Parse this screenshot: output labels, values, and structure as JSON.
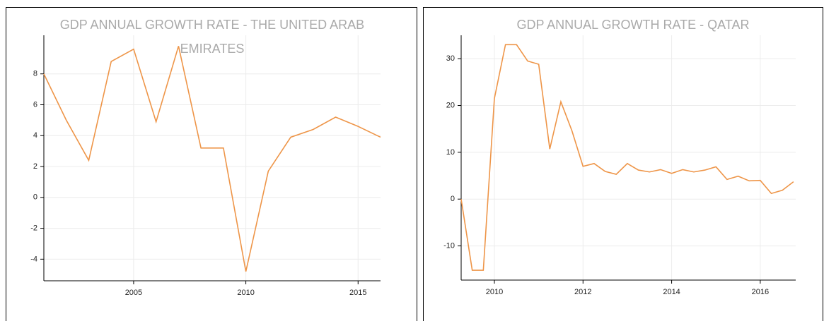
{
  "chart_data": [
    {
      "type": "line",
      "title": "GDP ANNUAL GROWTH RATE - THE UNITED ARAB EMIRATES",
      "x": [
        2001,
        2002,
        2003,
        2004,
        2005,
        2006,
        2007,
        2008,
        2009,
        2010,
        2011,
        2012,
        2013,
        2014,
        2015,
        2016
      ],
      "series": [
        {
          "color": "#ee9548",
          "values": [
            8.0,
            5.0,
            2.4,
            8.8,
            9.6,
            4.9,
            9.8,
            3.2,
            3.2,
            -4.8,
            1.7,
            3.9,
            4.4,
            5.2,
            4.6,
            3.9
          ]
        }
      ],
      "xlim": [
        2001,
        2016
      ],
      "xticks": [
        2005,
        2010,
        2015
      ],
      "ylim": [
        -5.4,
        10.5
      ],
      "yticks": [
        -4,
        -2,
        0,
        2,
        4,
        6,
        8
      ],
      "grid": true
    },
    {
      "type": "line",
      "title": "GDP ANNUAL GROWTH RATE - QATAR",
      "x": [
        2009.25,
        2009.5,
        2009.75,
        2010.0,
        2010.25,
        2010.5,
        2010.75,
        2011.0,
        2011.25,
        2011.5,
        2011.75,
        2012.0,
        2012.25,
        2012.5,
        2012.75,
        2013.0,
        2013.25,
        2013.5,
        2013.75,
        2014.0,
        2014.25,
        2014.5,
        2014.75,
        2015.0,
        2015.25,
        2015.5,
        2015.75,
        2016.0,
        2016.25,
        2016.5,
        2016.75
      ],
      "series": [
        {
          "color": "#ee9548",
          "values": [
            0,
            -15.2,
            -15.2,
            21.5,
            33,
            33,
            29.5,
            28.8,
            10.7,
            20.8,
            14.6,
            7.0,
            7.6,
            5.9,
            5.3,
            7.6,
            6.2,
            5.8,
            6.3,
            5.5,
            6.3,
            5.8,
            6.2,
            6.9,
            4.2,
            4.9,
            3.9,
            4.0,
            1.2,
            1.9,
            3.7
          ]
        }
      ],
      "xlim": [
        2009.25,
        2016.8
      ],
      "xticks": [
        2010,
        2012,
        2014,
        2016
      ],
      "ylim": [
        -17.3,
        35
      ],
      "yticks": [
        -10,
        0,
        10,
        20,
        30
      ],
      "grid": true
    }
  ]
}
